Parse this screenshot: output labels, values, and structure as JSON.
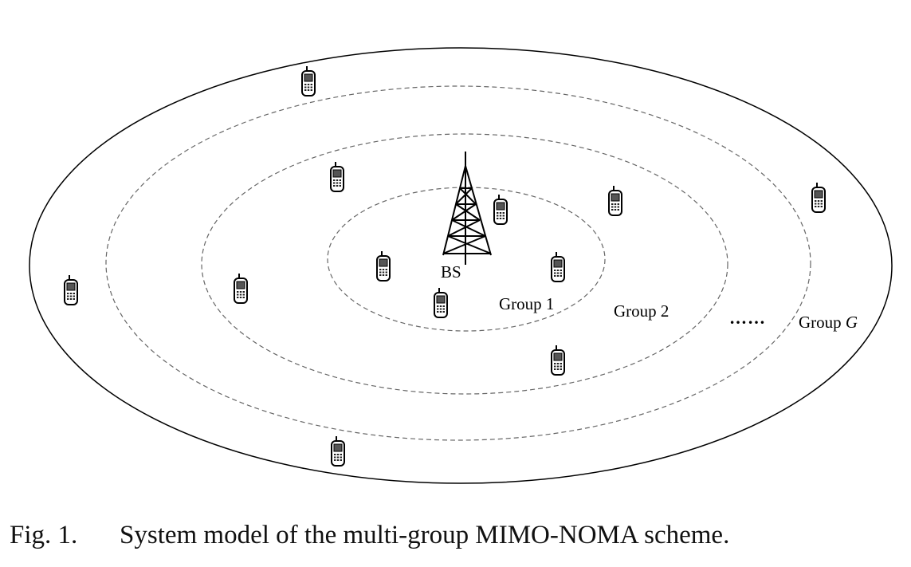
{
  "diagram": {
    "base_station_label": "BS",
    "group_labels": [
      "Group 1",
      "Group 2"
    ],
    "ellipsis": "……",
    "last_group_prefix": "Group ",
    "last_group_symbol": "G",
    "user_device_icon": "mobile-phone-icon",
    "base_station_icon": "antenna-tower-icon"
  },
  "caption": {
    "number": "Fig. 1.",
    "text": "System model of the multi-group MIMO-NOMA scheme."
  }
}
